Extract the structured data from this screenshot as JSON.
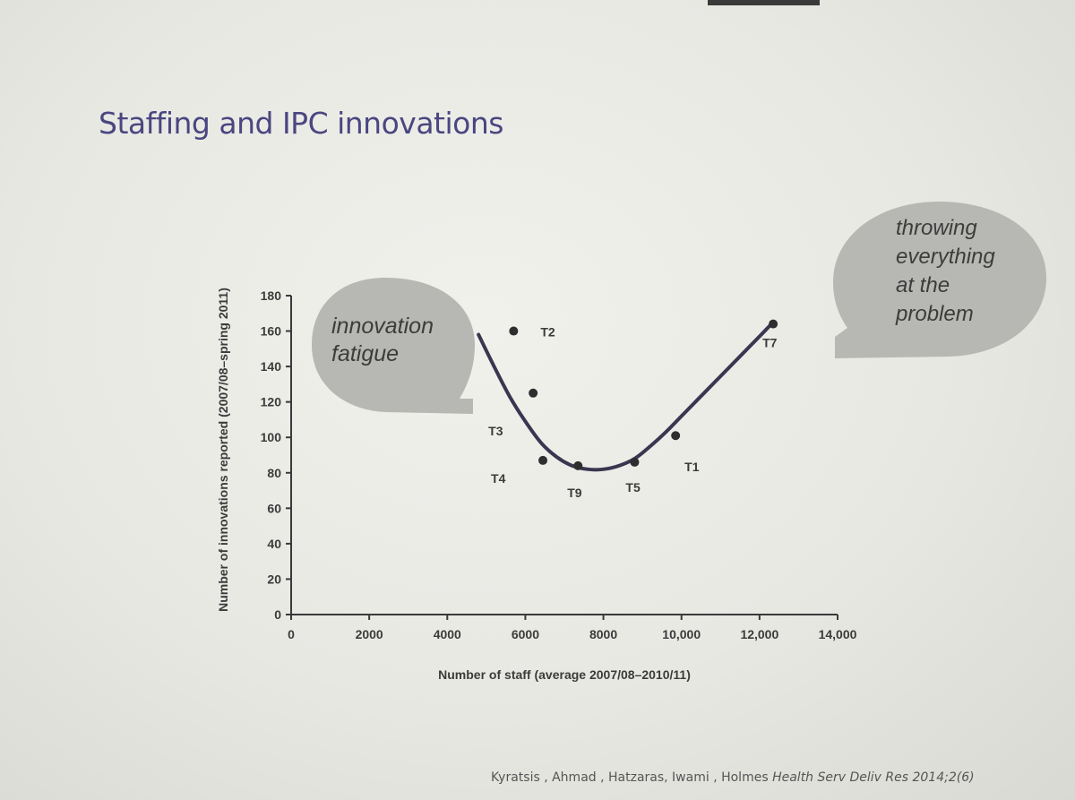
{
  "slide": {
    "title": "Staffing and IPC innovations",
    "citation_authors": "Kyratsis , Ahmad , Hatzaras, Iwami , Holmes",
    "citation_journal": "Health Serv Deliv Res 2014;2(6)"
  },
  "callouts": {
    "left": [
      "innovation",
      "fatigue"
    ],
    "right": [
      "throwing",
      "everything",
      "at the",
      "problem"
    ]
  },
  "colors": {
    "title": "#4a4680",
    "curve": "#3a3650",
    "points": "#2e2e2e",
    "bubble": "#b7b7b3"
  },
  "chart_data": {
    "type": "scatter",
    "xlabel": "Number of staff (average 2007/08–2010/11)",
    "ylabel": "Number of innovations reported (2007/08–spring 2011)",
    "xlim": [
      0,
      14000
    ],
    "ylim": [
      0,
      180
    ],
    "x_ticks": [
      {
        "value": 0,
        "label": "0"
      },
      {
        "value": 2000,
        "label": "2000"
      },
      {
        "value": 4000,
        "label": "4000"
      },
      {
        "value": 6000,
        "label": "6000"
      },
      {
        "value": 8000,
        "label": "8000"
      },
      {
        "value": 10000,
        "label": "10,000"
      },
      {
        "value": 12000,
        "label": "12,000"
      },
      {
        "value": 14000,
        "label": "14,000"
      }
    ],
    "y_ticks": [
      0,
      20,
      40,
      60,
      80,
      100,
      120,
      140,
      160,
      180
    ],
    "grid": false,
    "points": [
      {
        "label": "T2",
        "x": 5700,
        "y": 160
      },
      {
        "label": "T3",
        "x": 6200,
        "y": 125
      },
      {
        "label": "T4",
        "x": 6450,
        "y": 87
      },
      {
        "label": "T9",
        "x": 7350,
        "y": 84
      },
      {
        "label": "T5",
        "x": 8800,
        "y": 86
      },
      {
        "label": "T1",
        "x": 9850,
        "y": 101
      },
      {
        "label": "T7",
        "x": 12350,
        "y": 164
      }
    ],
    "fit_curve": {
      "type": "quadratic trend",
      "points": [
        [
          4800,
          158
        ],
        [
          5200,
          140
        ],
        [
          5600,
          123
        ],
        [
          6000,
          109
        ],
        [
          6400,
          97
        ],
        [
          6800,
          89
        ],
        [
          7200,
          84
        ],
        [
          7600,
          82
        ],
        [
          8000,
          82
        ],
        [
          8400,
          84
        ],
        [
          8800,
          88
        ],
        [
          9200,
          95
        ],
        [
          9600,
          103
        ],
        [
          10000,
          112
        ],
        [
          10400,
          121
        ],
        [
          10800,
          130
        ],
        [
          11200,
          139
        ],
        [
          11600,
          148
        ],
        [
          12000,
          157
        ],
        [
          12350,
          165
        ]
      ]
    }
  }
}
